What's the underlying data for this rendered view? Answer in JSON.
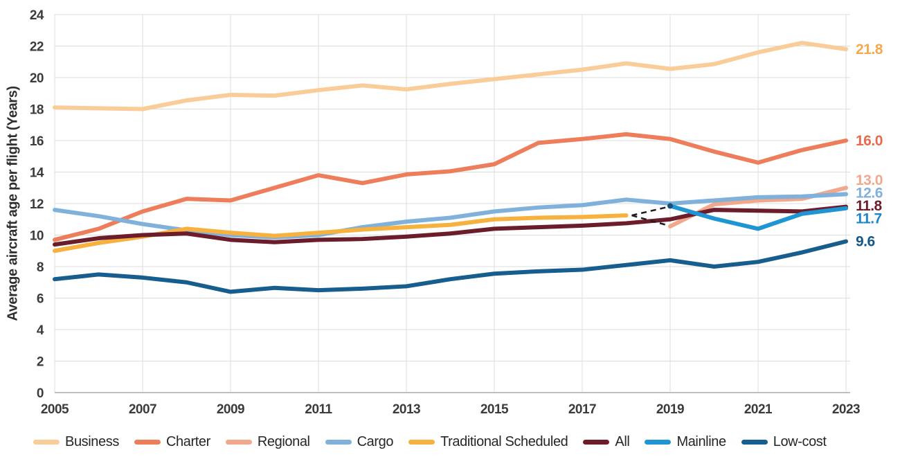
{
  "chart_data": {
    "type": "line",
    "title": "",
    "xlabel": "",
    "ylabel": "Average aircraft age per flight (Years)",
    "xlim": [
      2005,
      2023
    ],
    "ylim": [
      0,
      24
    ],
    "grid": true,
    "legend_position": "bottom",
    "x": [
      2005,
      2006,
      2007,
      2008,
      2009,
      2010,
      2011,
      2012,
      2013,
      2014,
      2015,
      2016,
      2017,
      2018,
      2019,
      2020,
      2021,
      2022,
      2023
    ],
    "x_tick_labels": [
      "2005",
      "2007",
      "2009",
      "2011",
      "2013",
      "2015",
      "2017",
      "2019",
      "2021",
      "2023"
    ],
    "y_tick_labels": [
      "0",
      "2",
      "4",
      "6",
      "8",
      "10",
      "12",
      "14",
      "16",
      "18",
      "20",
      "22",
      "24"
    ],
    "series": [
      {
        "name": "Business",
        "color": "#F9CC98",
        "label_color": "#F5A94E",
        "end_label": "21.8",
        "values": [
          18.1,
          18.05,
          18.0,
          18.55,
          18.9,
          18.85,
          19.2,
          19.5,
          19.25,
          19.6,
          19.9,
          20.2,
          20.5,
          20.9,
          20.55,
          20.85,
          21.6,
          22.2,
          21.8
        ]
      },
      {
        "name": "Charter",
        "color": "#ED7D5B",
        "label_color": "#E76A4D",
        "end_label": "16.0",
        "values": [
          9.7,
          10.4,
          11.5,
          12.3,
          12.2,
          13.0,
          13.8,
          13.3,
          13.85,
          14.05,
          14.5,
          15.85,
          16.1,
          16.4,
          16.1,
          15.3,
          14.6,
          15.4,
          16.0
        ]
      },
      {
        "name": "Regional",
        "color": "#F2A88D",
        "label_color": "#F2A88D",
        "end_label": "13.0",
        "values": [
          null,
          null,
          null,
          null,
          null,
          null,
          null,
          null,
          null,
          null,
          null,
          null,
          null,
          null,
          10.55,
          11.95,
          12.2,
          12.3,
          13.0
        ]
      },
      {
        "name": "Cargo",
        "color": "#7FB1DB",
        "label_color": "#7FB1DB",
        "end_label": "12.6",
        "values": [
          11.6,
          11.2,
          10.7,
          10.3,
          10.0,
          9.85,
          10.0,
          10.5,
          10.85,
          11.1,
          11.5,
          11.75,
          11.9,
          12.25,
          12.0,
          12.2,
          12.4,
          12.45,
          12.6
        ]
      },
      {
        "name": "Traditional Scheduled",
        "color": "#F7B13E",
        "label_color": "#F7B13E",
        "end_label": null,
        "values": [
          9.0,
          9.5,
          9.9,
          10.4,
          10.15,
          9.95,
          10.15,
          10.35,
          10.5,
          10.65,
          11.0,
          11.1,
          11.15,
          11.25,
          null,
          null,
          null,
          null,
          null
        ]
      },
      {
        "name": "All",
        "color": "#6C1D2B",
        "label_color": "#6C1D2B",
        "end_label": "11.8",
        "values": [
          9.4,
          9.8,
          10.0,
          10.1,
          9.7,
          9.55,
          9.7,
          9.75,
          9.9,
          10.1,
          10.4,
          10.5,
          10.6,
          10.75,
          11.0,
          11.6,
          11.55,
          11.5,
          11.8
        ]
      },
      {
        "name": "Mainline",
        "color": "#2095D3",
        "label_color": "#1C86C9",
        "end_label": "11.7",
        "start_marker": true,
        "values": [
          null,
          null,
          null,
          null,
          null,
          null,
          null,
          null,
          null,
          null,
          null,
          null,
          null,
          null,
          11.85,
          11.05,
          10.4,
          11.35,
          11.7
        ]
      },
      {
        "name": "Low-cost",
        "color": "#175D8D",
        "label_color": "#155689",
        "end_label": "9.6",
        "values": [
          7.2,
          7.5,
          7.3,
          7.0,
          6.4,
          6.65,
          6.5,
          6.6,
          6.75,
          7.2,
          7.55,
          7.7,
          7.8,
          8.1,
          8.4,
          8.0,
          8.3,
          8.9,
          9.6
        ]
      }
    ],
    "annotations": {
      "dashed_transition_lines": [
        {
          "from_x": 2018,
          "from_y": 11.25,
          "to_x": 2019,
          "to_y": 11.8
        },
        {
          "from_x": 2018,
          "from_y": 11.25,
          "to_x": 2019,
          "to_y": 10.6
        }
      ]
    }
  }
}
